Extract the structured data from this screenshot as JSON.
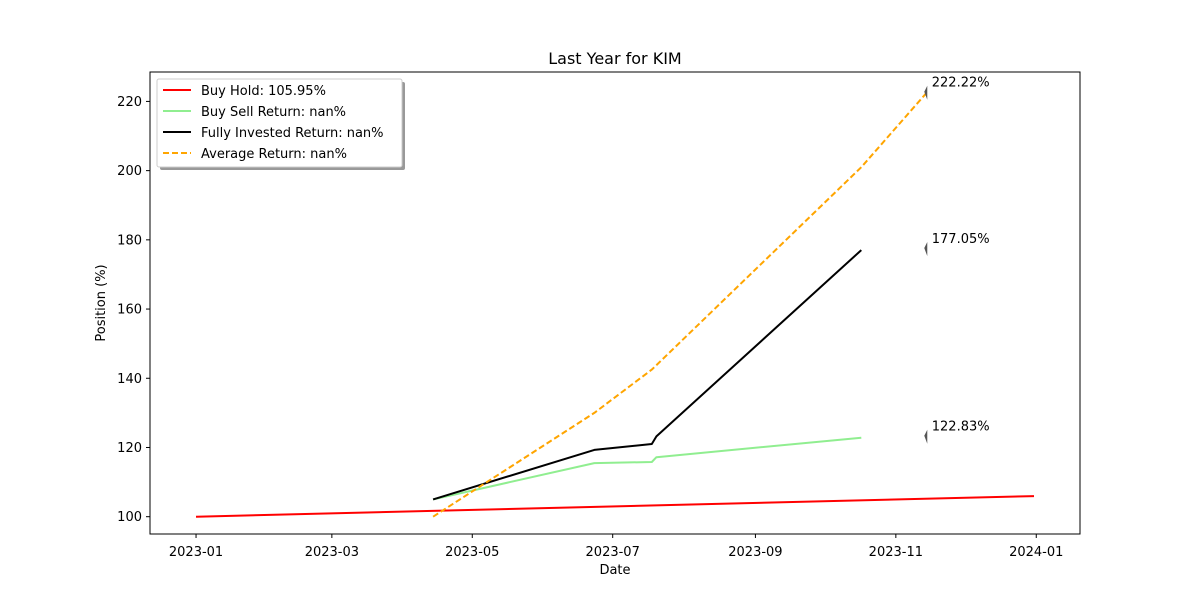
{
  "chart_data": {
    "type": "line",
    "title": "Last Year for KIM",
    "xlabel": "Date",
    "ylabel": "Position (%)",
    "xlim": [
      "2022-12-12",
      "2024-01-20"
    ],
    "ylim": [
      95,
      228.5
    ],
    "x_ticks": [
      "2023-01-01",
      "2023-03-01",
      "2023-05-01",
      "2023-07-01",
      "2023-09-01",
      "2023-11-01",
      "2024-01-01"
    ],
    "x_tick_labels": [
      "2023-01",
      "2023-03",
      "2023-05",
      "2023-07",
      "2023-09",
      "2023-11",
      "2024-01"
    ],
    "y_ticks": [
      100,
      120,
      140,
      160,
      180,
      200,
      220
    ],
    "y_tick_labels": [
      "100",
      "120",
      "140",
      "160",
      "180",
      "200",
      "220"
    ],
    "legend_position": "top-left",
    "grid": false,
    "series": [
      {
        "name": "Buy Hold: 105.95%",
        "color": "#ff0000",
        "dash": "solid",
        "points": [
          [
            "2023-01-01",
            100.0
          ],
          [
            "2023-12-31",
            105.95
          ]
        ]
      },
      {
        "name": "Buy Sell Return: nan%",
        "color": "#90ee90",
        "dash": "solid",
        "points": [
          [
            "2023-04-14",
            105.0
          ],
          [
            "2023-06-23",
            115.5
          ],
          [
            "2023-07-18",
            115.8
          ],
          [
            "2023-07-20",
            117.2
          ],
          [
            "2023-10-17",
            122.83
          ]
        ]
      },
      {
        "name": "Fully Invested Return: nan%",
        "color": "#000000",
        "dash": "solid",
        "points": [
          [
            "2023-04-14",
            105.0
          ],
          [
            "2023-06-23",
            119.3
          ],
          [
            "2023-07-18",
            121.0
          ],
          [
            "2023-07-20",
            123.2
          ],
          [
            "2023-10-17",
            177.05
          ]
        ]
      },
      {
        "name": "Average Return: nan%",
        "color": "#ffa500",
        "dash": "dashed",
        "points": [
          [
            "2023-04-14",
            100.0
          ],
          [
            "2023-06-23",
            130.0
          ],
          [
            "2023-07-18",
            142.5
          ],
          [
            "2023-10-17",
            201.0
          ],
          [
            "2023-11-14",
            222.22
          ]
        ]
      }
    ],
    "annotations": [
      {
        "text": "222.22%",
        "x": "2023-11-14",
        "y": 222.22
      },
      {
        "text": "177.05%",
        "x": "2023-11-14",
        "y": 177.05
      },
      {
        "text": "122.83%",
        "x": "2023-11-14",
        "y": 122.83
      }
    ]
  }
}
